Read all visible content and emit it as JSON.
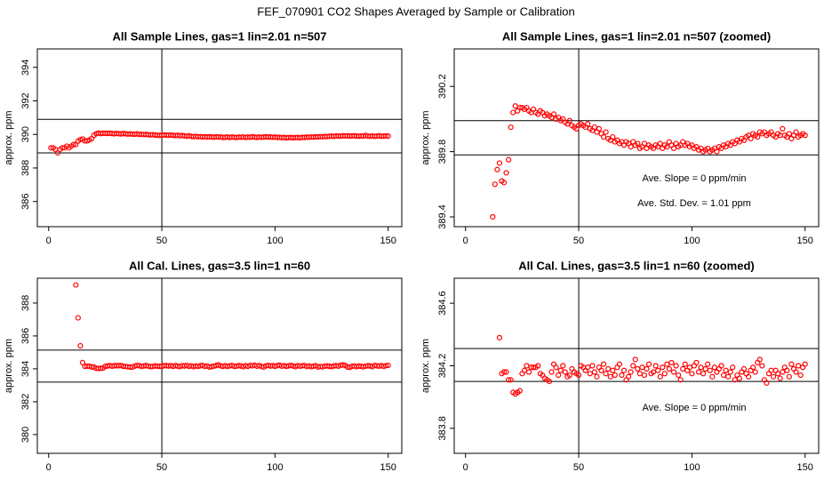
{
  "title": "FEF_070901  CO2 Shapes Averaged by Sample or Calibration",
  "chart_data": [
    {
      "type": "scatter",
      "title": "All Sample Lines, gas=1 lin=2.01 n=507",
      "ylabel": "approx. ppm",
      "color": "#ff0000",
      "xlim": [
        -5,
        156
      ],
      "xticks": [
        0,
        50,
        100,
        150
      ],
      "ylim": [
        384.5,
        395.1
      ],
      "yticks": [
        386,
        388,
        390,
        392,
        394
      ],
      "vline": 50,
      "hlines": [
        390.9,
        388.9
      ],
      "x": [
        1,
        2,
        3,
        4,
        5,
        6,
        7,
        8,
        9,
        10,
        11,
        12,
        13,
        14,
        15,
        16,
        17,
        18,
        19,
        20,
        21,
        22,
        23,
        24,
        25,
        26,
        27,
        28,
        29,
        30,
        31,
        32,
        33,
        34,
        35,
        36,
        37,
        38,
        39,
        40,
        41,
        42,
        43,
        44,
        45,
        46,
        47,
        48,
        49,
        50,
        51,
        52,
        53,
        54,
        55,
        56,
        57,
        58,
        59,
        60,
        61,
        62,
        63,
        64,
        65,
        66,
        67,
        68,
        69,
        70,
        71,
        72,
        73,
        74,
        75,
        76,
        77,
        78,
        79,
        80,
        81,
        82,
        83,
        84,
        85,
        86,
        87,
        88,
        89,
        90,
        91,
        92,
        93,
        94,
        95,
        96,
        97,
        98,
        99,
        100,
        101,
        102,
        103,
        104,
        105,
        106,
        107,
        108,
        109,
        110,
        111,
        112,
        113,
        114,
        115,
        116,
        117,
        118,
        119,
        120,
        121,
        122,
        123,
        124,
        125,
        126,
        127,
        128,
        129,
        130,
        131,
        132,
        133,
        134,
        135,
        136,
        137,
        138,
        139,
        140,
        141,
        142,
        143,
        144,
        145,
        146,
        147,
        148,
        149,
        150
      ],
      "values": [
        389.2,
        389.2,
        389.1,
        388.9,
        389.1,
        389.2,
        389.2,
        389.3,
        389.2,
        389.3,
        389.4,
        389.4,
        389.6,
        389.69,
        389.73,
        389.62,
        389.61,
        389.67,
        389.75,
        389.95,
        390.04,
        390.08,
        390.05,
        390.07,
        390.07,
        390.06,
        390.07,
        390.05,
        390.04,
        390.06,
        390.04,
        390.03,
        390.05,
        390.04,
        390.02,
        390.03,
        390.02,
        390.01,
        390.03,
        390.0,
        390.01,
        389.99,
        390.0,
        389.98,
        389.97,
        389.99,
        389.96,
        389.95,
        389.94,
        389.96,
        389.97,
        389.96,
        389.95,
        389.97,
        389.94,
        389.93,
        389.95,
        389.92,
        389.94,
        389.91,
        389.89,
        389.92,
        389.88,
        389.87,
        389.89,
        389.86,
        389.87,
        389.85,
        389.86,
        389.84,
        389.86,
        389.85,
        389.83,
        389.86,
        389.84,
        389.85,
        389.82,
        389.83,
        389.85,
        389.82,
        389.84,
        389.83,
        389.82,
        389.84,
        389.83,
        389.85,
        389.82,
        389.84,
        389.83,
        389.86,
        389.84,
        389.82,
        389.85,
        389.83,
        389.84,
        389.86,
        389.84,
        389.85,
        389.83,
        389.84,
        389.82,
        389.83,
        389.81,
        389.82,
        389.8,
        389.81,
        389.82,
        389.8,
        389.81,
        389.82,
        389.8,
        389.83,
        389.82,
        389.84,
        389.83,
        389.85,
        389.84,
        389.86,
        389.85,
        389.87,
        389.86,
        389.88,
        389.87,
        389.89,
        389.9,
        389.88,
        389.91,
        389.9,
        389.89,
        389.92,
        389.91,
        389.92,
        389.9,
        389.91,
        389.92,
        389.9,
        389.89,
        389.91,
        389.9,
        389.94,
        389.9,
        389.89,
        389.91,
        389.88,
        389.9,
        389.92,
        389.89,
        389.9,
        389.91,
        389.9
      ]
    },
    {
      "type": "scatter",
      "title": "All Sample Lines, gas=1 lin=2.01 n=507 (zoomed)",
      "ylabel": "approx. ppm",
      "color": "#ff0000",
      "xlim": [
        -5,
        156
      ],
      "xticks": [
        0,
        50,
        100,
        150
      ],
      "ylim": [
        389.34,
        390.43
      ],
      "yticks": [
        {
          "value": 389.4,
          "label": "389.4"
        },
        {
          "value": 389.8,
          "label": "389.8"
        },
        {
          "value": 390.2,
          "label": "390.2"
        }
      ],
      "vline": 50,
      "hlines": [
        389.99,
        389.78
      ],
      "annotations": [
        "Ave. Slope =  0  ppm/min",
        "Ave. Std. Dev. =  1.01  ppm"
      ],
      "x": [
        12,
        13,
        14,
        15,
        16,
        17,
        18,
        19,
        20,
        21,
        22,
        23,
        24,
        25,
        26,
        27,
        28,
        29,
        30,
        31,
        32,
        33,
        34,
        35,
        36,
        37,
        38,
        39,
        40,
        41,
        42,
        43,
        44,
        45,
        46,
        47,
        48,
        49,
        50,
        51,
        52,
        53,
        54,
        55,
        56,
        57,
        58,
        59,
        60,
        61,
        62,
        63,
        64,
        65,
        66,
        67,
        68,
        69,
        70,
        71,
        72,
        73,
        74,
        75,
        76,
        77,
        78,
        79,
        80,
        81,
        82,
        83,
        84,
        85,
        86,
        87,
        88,
        89,
        90,
        91,
        92,
        93,
        94,
        95,
        96,
        97,
        98,
        99,
        100,
        101,
        102,
        103,
        104,
        105,
        106,
        107,
        108,
        109,
        110,
        111,
        112,
        113,
        114,
        115,
        116,
        117,
        118,
        119,
        120,
        121,
        122,
        123,
        124,
        125,
        126,
        127,
        128,
        129,
        130,
        131,
        132,
        133,
        134,
        135,
        136,
        137,
        138,
        139,
        140,
        141,
        142,
        143,
        144,
        145,
        146,
        147,
        148,
        149,
        150
      ],
      "values": [
        389.4,
        389.6,
        389.69,
        389.73,
        389.62,
        389.61,
        389.67,
        389.75,
        389.95,
        390.04,
        390.08,
        390.05,
        390.07,
        390.07,
        390.06,
        390.07,
        390.05,
        390.04,
        390.06,
        390.04,
        390.03,
        390.05,
        390.04,
        390.02,
        390.03,
        390.02,
        390.01,
        390.03,
        390.0,
        390.01,
        389.99,
        390.0,
        389.98,
        389.97,
        389.99,
        389.96,
        389.95,
        389.94,
        389.96,
        389.97,
        389.96,
        389.95,
        389.97,
        389.94,
        389.93,
        389.95,
        389.92,
        389.94,
        389.91,
        389.89,
        389.92,
        389.88,
        389.87,
        389.89,
        389.86,
        389.87,
        389.85,
        389.86,
        389.84,
        389.86,
        389.85,
        389.83,
        389.86,
        389.84,
        389.85,
        389.82,
        389.83,
        389.85,
        389.82,
        389.84,
        389.83,
        389.82,
        389.84,
        389.83,
        389.85,
        389.82,
        389.84,
        389.83,
        389.86,
        389.84,
        389.82,
        389.85,
        389.83,
        389.84,
        389.86,
        389.84,
        389.85,
        389.83,
        389.84,
        389.82,
        389.83,
        389.81,
        389.82,
        389.8,
        389.81,
        389.82,
        389.8,
        389.81,
        389.82,
        389.8,
        389.83,
        389.82,
        389.84,
        389.83,
        389.85,
        389.84,
        389.86,
        389.85,
        389.87,
        389.86,
        389.88,
        389.87,
        389.89,
        389.9,
        389.88,
        389.91,
        389.9,
        389.89,
        389.92,
        389.91,
        389.92,
        389.9,
        389.91,
        389.92,
        389.9,
        389.89,
        389.91,
        389.9,
        389.94,
        389.9,
        389.89,
        389.91,
        389.88,
        389.9,
        389.92,
        389.89,
        389.9,
        389.91,
        389.9
      ]
    },
    {
      "type": "scatter",
      "title": "All Cal. Lines, gas=3.5 lin=1 n=60",
      "ylabel": "approx. ppm",
      "color": "#ff0000",
      "xlim": [
        -5,
        156
      ],
      "xticks": [
        0,
        50,
        100,
        150
      ],
      "ylim": [
        378.86,
        389.51
      ],
      "yticks": [
        380,
        382,
        384,
        386,
        388
      ],
      "vline": 50,
      "hlines": [
        385.14,
        383.19
      ],
      "x": [
        12,
        13,
        14,
        15,
        16,
        17,
        18,
        19,
        20,
        21,
        22,
        23,
        24,
        25,
        26,
        27,
        28,
        29,
        30,
        31,
        32,
        33,
        34,
        35,
        36,
        37,
        38,
        39,
        40,
        41,
        42,
        43,
        44,
        45,
        46,
        47,
        48,
        49,
        50,
        51,
        52,
        53,
        54,
        55,
        56,
        57,
        58,
        59,
        60,
        61,
        62,
        63,
        64,
        65,
        66,
        67,
        68,
        69,
        70,
        71,
        72,
        73,
        74,
        75,
        76,
        77,
        78,
        79,
        80,
        81,
        82,
        83,
        84,
        85,
        86,
        87,
        88,
        89,
        90,
        91,
        92,
        93,
        94,
        95,
        96,
        97,
        98,
        99,
        100,
        101,
        102,
        103,
        104,
        105,
        106,
        107,
        108,
        109,
        110,
        111,
        112,
        113,
        114,
        115,
        116,
        117,
        118,
        119,
        120,
        121,
        122,
        123,
        124,
        125,
        126,
        127,
        128,
        129,
        130,
        131,
        132,
        133,
        134,
        135,
        136,
        137,
        138,
        139,
        140,
        141,
        142,
        143,
        144,
        145,
        146,
        147,
        148,
        149,
        150
      ],
      "values": [
        389.1,
        387.1,
        385.4,
        384.38,
        384.15,
        384.16,
        384.16,
        384.11,
        384.11,
        384.03,
        384.02,
        384.03,
        384.04,
        384.15,
        384.17,
        384.2,
        384.16,
        384.19,
        384.19,
        384.19,
        384.2,
        384.15,
        384.14,
        384.12,
        384.11,
        384.1,
        384.16,
        384.21,
        384.19,
        384.14,
        384.17,
        384.2,
        384.16,
        384.13,
        384.14,
        384.18,
        384.16,
        384.15,
        384.14,
        384.2,
        384.19,
        384.17,
        384.19,
        384.15,
        384.2,
        384.16,
        384.13,
        384.19,
        384.17,
        384.21,
        384.15,
        384.18,
        384.13,
        384.17,
        384.14,
        384.19,
        384.21,
        384.14,
        384.17,
        384.11,
        384.13,
        384.16,
        384.2,
        384.24,
        384.18,
        384.15,
        384.19,
        384.14,
        384.18,
        384.21,
        384.15,
        384.16,
        384.2,
        384.17,
        384.13,
        384.19,
        384.15,
        384.21,
        384.18,
        384.22,
        384.16,
        384.2,
        384.14,
        384.11,
        384.18,
        384.21,
        384.17,
        384.19,
        384.15,
        384.2,
        384.22,
        384.16,
        384.19,
        384.15,
        384.18,
        384.21,
        384.17,
        384.13,
        384.19,
        384.16,
        384.18,
        384.2,
        384.14,
        384.17,
        384.13,
        384.16,
        384.19,
        384.11,
        384.14,
        384.12,
        384.16,
        384.18,
        384.15,
        384.13,
        384.17,
        384.19,
        384.16,
        384.22,
        384.24,
        384.2,
        384.11,
        384.09,
        384.15,
        384.17,
        384.13,
        384.17,
        384.15,
        384.12,
        384.16,
        384.19,
        384.17,
        384.13,
        384.21,
        384.18,
        384.16,
        384.2,
        384.14,
        384.19,
        384.21
      ]
    },
    {
      "type": "scatter",
      "title": "All Cal. Lines, gas=3.5 lin=1 n=60 (zoomed)",
      "ylabel": "approx. ppm",
      "color": "#ff0000",
      "xlim": [
        -5,
        156
      ],
      "xticks": [
        0,
        50,
        100,
        150
      ],
      "ylim": [
        383.64,
        384.76
      ],
      "yticks": [
        {
          "value": 383.8,
          "label": "383.8"
        },
        {
          "value": 384.2,
          "label": "384.2"
        },
        {
          "value": 384.6,
          "label": "384.6"
        }
      ],
      "vline": 50,
      "hlines": [
        384.31,
        384.1
      ],
      "annotations": [
        "Ave. Slope =  0  ppm/min"
      ],
      "x": [
        15,
        16,
        17,
        18,
        19,
        20,
        21,
        22,
        23,
        24,
        25,
        26,
        27,
        28,
        29,
        30,
        31,
        32,
        33,
        34,
        35,
        36,
        37,
        38,
        39,
        40,
        41,
        42,
        43,
        44,
        45,
        46,
        47,
        48,
        49,
        50,
        51,
        52,
        53,
        54,
        55,
        56,
        57,
        58,
        59,
        60,
        61,
        62,
        63,
        64,
        65,
        66,
        67,
        68,
        69,
        70,
        71,
        72,
        73,
        74,
        75,
        76,
        77,
        78,
        79,
        80,
        81,
        82,
        83,
        84,
        85,
        86,
        87,
        88,
        89,
        90,
        91,
        92,
        93,
        94,
        95,
        96,
        97,
        98,
        99,
        100,
        101,
        102,
        103,
        104,
        105,
        106,
        107,
        108,
        109,
        110,
        111,
        112,
        113,
        114,
        115,
        116,
        117,
        118,
        119,
        120,
        121,
        122,
        123,
        124,
        125,
        126,
        127,
        128,
        129,
        130,
        131,
        132,
        133,
        134,
        135,
        136,
        137,
        138,
        139,
        140,
        141,
        142,
        143,
        144,
        145,
        146,
        147,
        148,
        149,
        150
      ],
      "values": [
        384.38,
        384.15,
        384.16,
        384.16,
        384.11,
        384.11,
        384.03,
        384.02,
        384.03,
        384.04,
        384.15,
        384.17,
        384.2,
        384.16,
        384.19,
        384.19,
        384.19,
        384.2,
        384.15,
        384.14,
        384.12,
        384.11,
        384.1,
        384.16,
        384.21,
        384.19,
        384.14,
        384.17,
        384.2,
        384.16,
        384.13,
        384.14,
        384.18,
        384.16,
        384.15,
        384.14,
        384.2,
        384.19,
        384.17,
        384.19,
        384.15,
        384.2,
        384.16,
        384.13,
        384.19,
        384.17,
        384.21,
        384.15,
        384.18,
        384.13,
        384.17,
        384.14,
        384.19,
        384.21,
        384.14,
        384.17,
        384.11,
        384.13,
        384.16,
        384.2,
        384.24,
        384.18,
        384.15,
        384.19,
        384.14,
        384.18,
        384.21,
        384.15,
        384.16,
        384.2,
        384.17,
        384.13,
        384.19,
        384.15,
        384.21,
        384.18,
        384.22,
        384.16,
        384.2,
        384.14,
        384.11,
        384.18,
        384.21,
        384.17,
        384.19,
        384.15,
        384.2,
        384.22,
        384.16,
        384.19,
        384.15,
        384.18,
        384.21,
        384.17,
        384.13,
        384.19,
        384.16,
        384.18,
        384.2,
        384.14,
        384.17,
        384.13,
        384.16,
        384.19,
        384.11,
        384.14,
        384.12,
        384.16,
        384.18,
        384.15,
        384.13,
        384.17,
        384.19,
        384.16,
        384.22,
        384.24,
        384.2,
        384.11,
        384.09,
        384.15,
        384.17,
        384.13,
        384.17,
        384.15,
        384.12,
        384.16,
        384.19,
        384.17,
        384.13,
        384.21,
        384.18,
        384.16,
        384.2,
        384.14,
        384.19,
        384.21
      ]
    }
  ]
}
